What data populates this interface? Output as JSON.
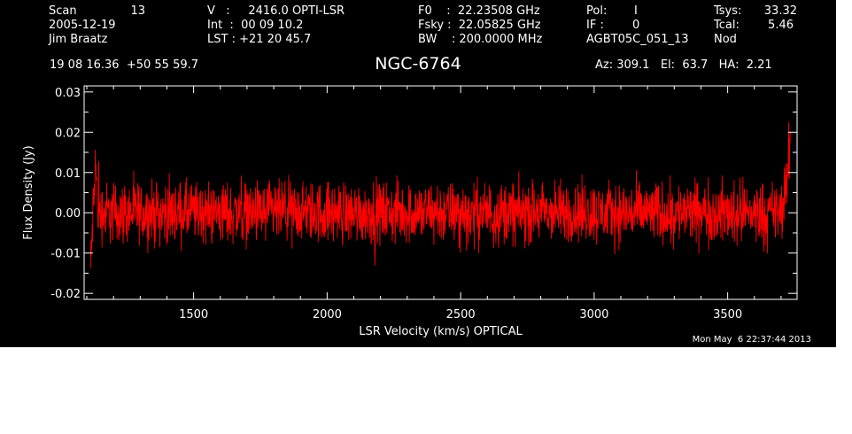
{
  "header": {
    "scan_label": "Scan",
    "scan_number": "13",
    "date": "2005-12-19",
    "observer": "Jim Braatz",
    "v_line": "V   :     2416.0 OPTI-LSR",
    "int_line": "Int  :  00 09 10.2",
    "lst_line": "LST : +21 20 45.7",
    "f0_line": "F0    :  22.23508 GHz",
    "fsky_line": "Fsky :  22.05825 GHz",
    "bw_line": "BW    : 200.0000 MHz",
    "pol_label": "Pol:",
    "pol_value": "I",
    "if_label": "IF :",
    "if_value": "0",
    "project": "AGBT05C_051_13",
    "tsys_label": "Tsys:",
    "tsys_value": "33.32",
    "tcal_label": "Tcal:",
    "tcal_value": "5.46",
    "mode": "Nod",
    "coords": "19 08 16.36  +50 55 59.7",
    "source": "NGC-6764",
    "az_el_ha": "Az: 309.1   El:  63.7   HA:  2.21",
    "timestamp": "Mon May  6 22:37:44 2013"
  },
  "colors": {
    "background": "#000000",
    "axes": "#ffffff",
    "spectrum": "#ff0000"
  },
  "chart_data": {
    "type": "line",
    "xlabel": "LSR Velocity (km/s) OPTICAL",
    "ylabel": "Flux Density (Jy)",
    "xlim": [
      1090,
      3760
    ],
    "ylim": [
      -0.0215,
      0.0315
    ],
    "xticks": [
      1500,
      2000,
      2500,
      3000,
      3500
    ],
    "xtick_labels": [
      "1500",
      "2000",
      "2500",
      "3000",
      "3500"
    ],
    "yticks": [
      -0.02,
      -0.01,
      0.0,
      0.01,
      0.02,
      0.03
    ],
    "ytick_labels": [
      "-0.02",
      "-0.01",
      "0.00",
      "0.01",
      "0.02",
      "0.03"
    ],
    "grid": false,
    "series": [
      {
        "x": [
          1113,
          1116,
          1120,
          1124,
          1128,
          1132,
          1136,
          1140,
          1150,
          1200,
          1300,
          1400,
          1500,
          1600,
          1700,
          1800,
          1900,
          2000,
          2100,
          2200,
          2300,
          2400,
          2500,
          2600,
          2650,
          2700,
          2800,
          2900,
          3000,
          3100,
          3200,
          3240,
          3300,
          3400,
          3500,
          3600,
          3650,
          3700,
          3715,
          3725,
          3730,
          3735
        ],
        "y": [
          -0.015,
          -0.012,
          -0.005,
          0.001,
          0.004,
          0.014,
          0.008,
          0.002,
          0.0,
          0.0,
          0.0,
          0.0,
          0.0,
          0.0,
          0.0,
          0.0,
          0.0,
          0.0,
          0.0,
          0.0,
          0.0,
          0.0,
          0.0,
          0.0,
          0.0,
          0.0,
          0.0,
          0.0,
          0.0,
          0.0,
          0.0,
          0.0,
          0.0,
          0.0,
          0.0,
          0.0,
          0.0,
          0.0,
          0.005,
          0.008,
          0.015,
          0.02
        ]
      }
    ]
  }
}
